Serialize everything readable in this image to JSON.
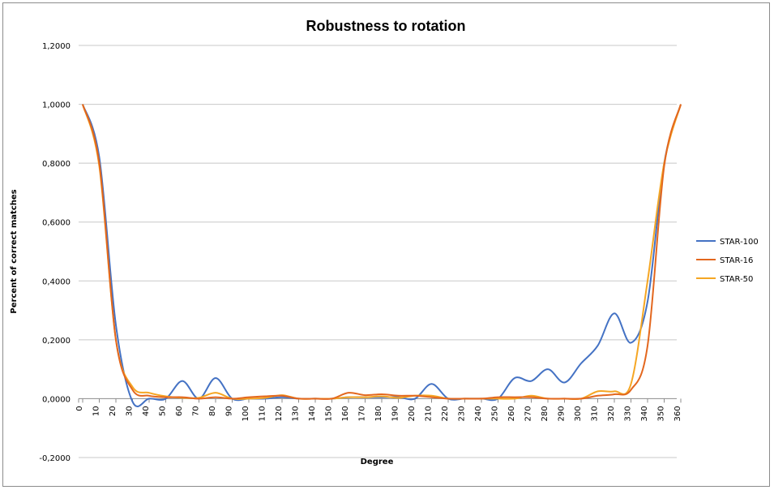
{
  "chart_data": {
    "type": "line",
    "title": "Robustness to rotation",
    "xlabel": "Degree",
    "ylabel": "Percent of correct matches",
    "x": [
      0,
      10,
      20,
      30,
      40,
      50,
      60,
      70,
      80,
      90,
      100,
      110,
      120,
      130,
      140,
      150,
      160,
      170,
      180,
      190,
      200,
      210,
      220,
      230,
      240,
      250,
      260,
      270,
      280,
      290,
      300,
      310,
      320,
      330,
      340,
      350,
      360
    ],
    "yticks": [
      "-0,2000",
      "0,0000",
      "0,2000",
      "0,4000",
      "0,6000",
      "0,8000",
      "1,0000",
      "1,2000"
    ],
    "ylim": [
      -0.2,
      1.2
    ],
    "grid": true,
    "legend_position": "right",
    "series": [
      {
        "name": "STAR-100",
        "color": "#4472c4",
        "values": [
          1.0,
          0.82,
          0.25,
          -0.01,
          0.0,
          0.0,
          0.06,
          0.0,
          0.07,
          0.0,
          0.0,
          0.0,
          0.005,
          0.0,
          0.0,
          0.0,
          0.005,
          0.005,
          0.005,
          0.005,
          0.0,
          0.05,
          0.0,
          0.0,
          0.0,
          0.0,
          0.07,
          0.06,
          0.1,
          0.055,
          0.12,
          0.18,
          0.29,
          0.19,
          0.33,
          0.8,
          1.0
        ]
      },
      {
        "name": "STAR-16",
        "color": "#e3671e",
        "values": [
          1.0,
          0.8,
          0.2,
          0.03,
          0.01,
          0.005,
          0.005,
          0.0,
          0.005,
          0.0,
          0.005,
          0.008,
          0.01,
          0.0,
          0.0,
          0.0,
          0.02,
          0.012,
          0.015,
          0.01,
          0.01,
          0.005,
          0.0,
          0.0,
          0.0,
          0.005,
          0.005,
          0.005,
          0.0,
          0.0,
          0.0,
          0.01,
          0.015,
          0.03,
          0.18,
          0.79,
          1.0
        ]
      },
      {
        "name": "STAR-50",
        "color": "#f5a623",
        "values": [
          1.0,
          0.79,
          0.2,
          0.04,
          0.02,
          0.008,
          0.003,
          0.003,
          0.02,
          0.0,
          0.0,
          0.003,
          0.012,
          0.0,
          0.0,
          0.0,
          0.005,
          0.005,
          0.008,
          0.003,
          0.01,
          0.01,
          0.0,
          0.0,
          0.0,
          0.0,
          0.0,
          0.01,
          0.0,
          0.0,
          0.0,
          0.025,
          0.025,
          0.05,
          0.4,
          0.8,
          1.0
        ]
      }
    ]
  }
}
